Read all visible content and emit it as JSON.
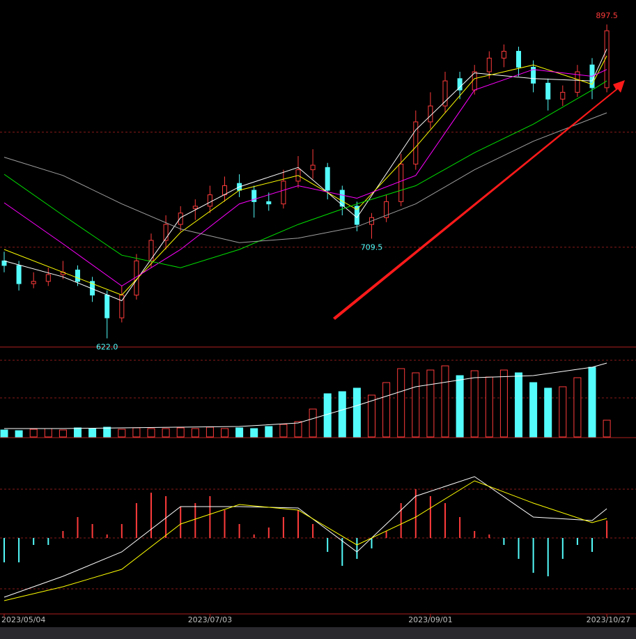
{
  "chart_data": [
    {
      "type": "candlestick",
      "categories": [
        "2023/05/04",
        null,
        null,
        null,
        null,
        null,
        null,
        null,
        null,
        null,
        null,
        null,
        null,
        null,
        "2023/07/03",
        null,
        null,
        null,
        null,
        null,
        null,
        null,
        null,
        null,
        null,
        null,
        null,
        null,
        null,
        "2023/09/01",
        null,
        null,
        null,
        null,
        null,
        null,
        null,
        null,
        null,
        null,
        null,
        "2023/10/27"
      ],
      "open": [
        690,
        686,
        670,
        672,
        678,
        682,
        672,
        660,
        640,
        660,
        690,
        708,
        722,
        736,
        738,
        748,
        758,
        752,
        742,
        740,
        760,
        770,
        772,
        752,
        738,
        722,
        728,
        742,
        775,
        812,
        826,
        850,
        840,
        856,
        868,
        874,
        860,
        846,
        832,
        838,
        862,
        842
      ],
      "high": [
        698,
        690,
        680,
        684,
        690,
        686,
        676,
        664,
        668,
        696,
        714,
        730,
        738,
        744,
        756,
        764,
        766,
        756,
        750,
        770,
        782,
        788,
        776,
        756,
        742,
        732,
        748,
        784,
        822,
        838,
        856,
        856,
        862,
        874,
        880,
        878,
        866,
        850,
        844,
        862,
        868,
        897.5
      ],
      "low": [
        680,
        664,
        666,
        668,
        674,
        668,
        654,
        622,
        636,
        656,
        684,
        700,
        716,
        726,
        732,
        742,
        746,
        728,
        734,
        736,
        754,
        762,
        744,
        730,
        716,
        709.5,
        724,
        738,
        770,
        806,
        820,
        832,
        836,
        850,
        860,
        852,
        838,
        822,
        826,
        834,
        832,
        838
      ],
      "close": [
        686,
        670,
        672,
        678,
        680,
        672,
        660,
        640,
        660,
        690,
        708,
        722,
        732,
        738,
        748,
        756,
        752,
        742,
        740,
        760,
        770,
        774,
        752,
        738,
        722,
        728,
        742,
        775,
        812,
        826,
        848,
        840,
        856,
        868,
        874,
        860,
        846,
        832,
        838,
        856,
        842,
        892
      ],
      "up_color": "#ff3b3b",
      "down_color": "#54fcfc",
      "ylim": [
        615,
        919
      ],
      "grid_lines": [
        702,
        803
      ],
      "line_x": [
        0,
        4,
        8,
        12,
        16,
        20,
        24,
        28,
        32,
        36,
        40,
        41
      ],
      "lines": [
        {
          "color": "#ffffff",
          "values": [
            690,
            676,
            655,
            728,
            755,
            772,
            728,
            805,
            855,
            850,
            848,
            876
          ]
        },
        {
          "color": "#ffff00",
          "values": [
            700,
            680,
            660,
            715,
            752,
            765,
            735,
            790,
            850,
            862,
            845,
            870
          ]
        },
        {
          "color": "#ff00ff",
          "values": [
            741,
            705,
            668,
            700,
            740,
            756,
            745,
            765,
            840,
            858,
            852,
            858
          ]
        },
        {
          "color": "#00e000",
          "values": [
            766,
            730,
            695,
            684,
            700,
            722,
            740,
            756,
            785,
            810,
            840,
            848
          ]
        },
        {
          "color": "#a0a0a0",
          "values": [
            781,
            765,
            740,
            718,
            706,
            710,
            720,
            740,
            770,
            795,
            815,
            820
          ]
        }
      ],
      "annotations": [
        {
          "value": 897.5,
          "label": "897.5",
          "color": "#ff3b3b"
        },
        {
          "value": 709.5,
          "label": "709.5",
          "color": "#54fcfc"
        },
        {
          "value": 622,
          "label": "622.0",
          "color": "#54fcfc"
        }
      ]
    },
    {
      "type": "volume",
      "values": [
        10,
        9,
        11,
        12,
        10,
        13,
        12,
        14,
        11,
        13,
        12,
        12,
        13,
        12,
        14,
        12,
        13,
        12,
        15,
        18,
        22,
        40,
        62,
        65,
        70,
        60,
        78,
        98,
        92,
        96,
        102,
        88,
        95,
        86,
        96,
        92,
        78,
        70,
        72,
        85,
        100,
        24
      ],
      "ylim": [
        0,
        120
      ],
      "grid_lines": [
        56,
        110
      ],
      "line_x": [
        0,
        4,
        8,
        12,
        16,
        20,
        24,
        28,
        32,
        36,
        40,
        41
      ],
      "lines": [
        {
          "color": "#ffffff",
          "values": [
            12,
            12,
            13,
            14,
            15,
            20,
            45,
            72,
            85,
            88,
            100,
            106
          ]
        }
      ]
    },
    {
      "type": "macd",
      "values": [
        -3.5,
        -3.5,
        -1,
        -1,
        1,
        3,
        2,
        0.5,
        2,
        5,
        6.5,
        6,
        4.5,
        5,
        6,
        4,
        2,
        0.5,
        1.5,
        3,
        4,
        2,
        -2,
        -4,
        -3,
        -1.5,
        1,
        5,
        7,
        6,
        5,
        3,
        1,
        0.5,
        -1,
        -3,
        -5,
        -5.5,
        -3,
        -1,
        -2,
        2.5
      ],
      "up_color": "#ff3b3b",
      "down_color": "#54fcfc",
      "ylim": [
        -10.8,
        14.2
      ],
      "grid_lines": [
        7,
        -7.3
      ],
      "line_x": [
        0,
        4,
        8,
        12,
        16,
        20,
        24,
        28,
        32,
        36,
        40,
        41
      ],
      "lines": [
        {
          "color": "#ffffff",
          "values": [
            -8.5,
            -5.5,
            -2,
            4.5,
            4.5,
            4.3,
            -2,
            6,
            8.8,
            3,
            2.5,
            4.2
          ]
        },
        {
          "color": "#ffff00",
          "values": [
            -9,
            -7,
            -4.5,
            2,
            4.8,
            4,
            -1,
            3,
            8.2,
            5,
            2.2,
            2.8
          ]
        }
      ]
    }
  ]
}
